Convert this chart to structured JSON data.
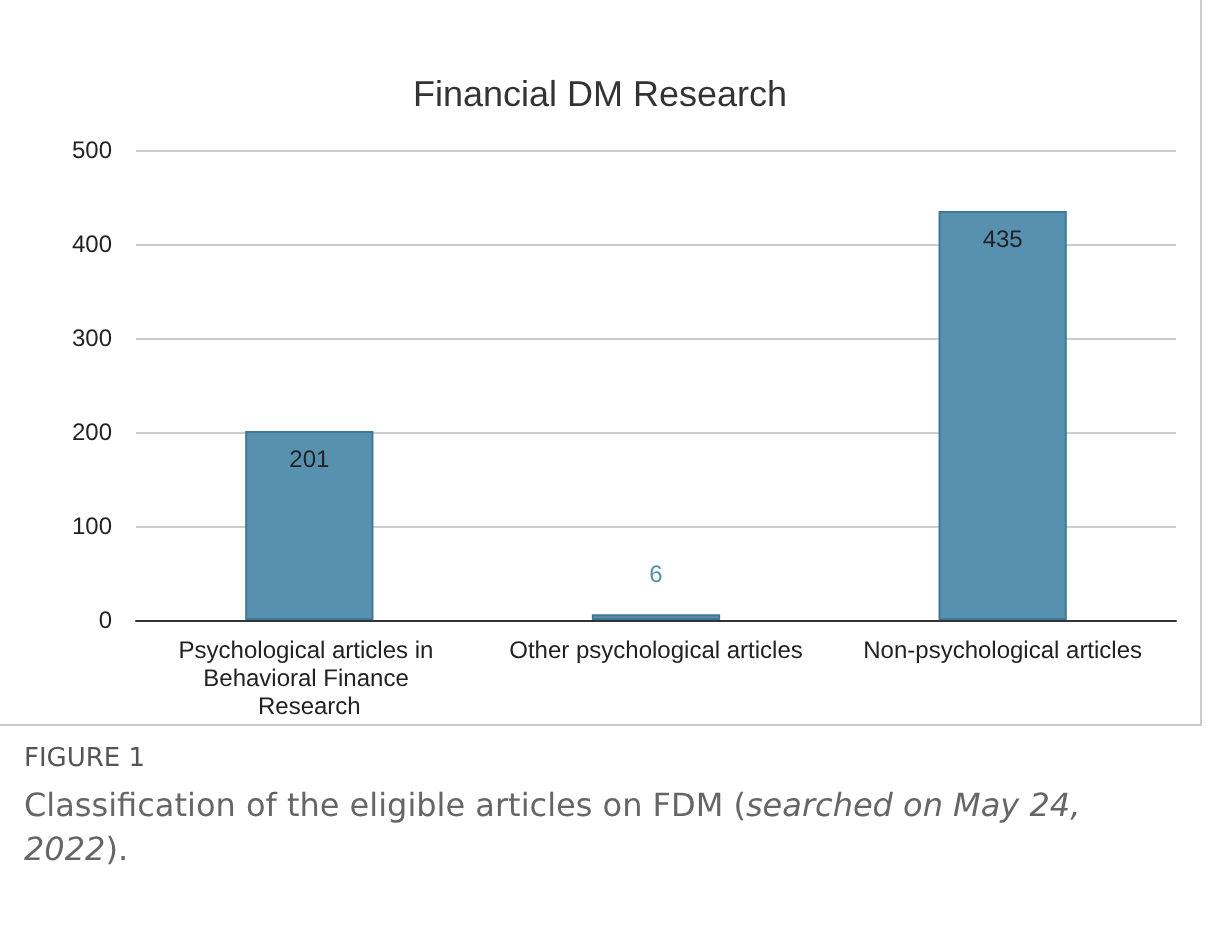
{
  "chart_data": {
    "type": "bar",
    "title": "Financial DM Research",
    "categories": [
      "Psychological articles in Behavioral Finance Research",
      "Other psychological articles",
      "Non-psychological articles"
    ],
    "values": [
      201,
      6,
      435
    ],
    "color": "#5891b0",
    "ylim": [
      0,
      500
    ],
    "yticks": [
      0,
      100,
      200,
      300,
      400,
      500
    ],
    "grid": "y",
    "data_labels": true,
    "annotations": [
      "FIGURE 1",
      "Classification of the eligible articles on FDM (",
      "searched on May 24, 2022",
      ")."
    ]
  }
}
